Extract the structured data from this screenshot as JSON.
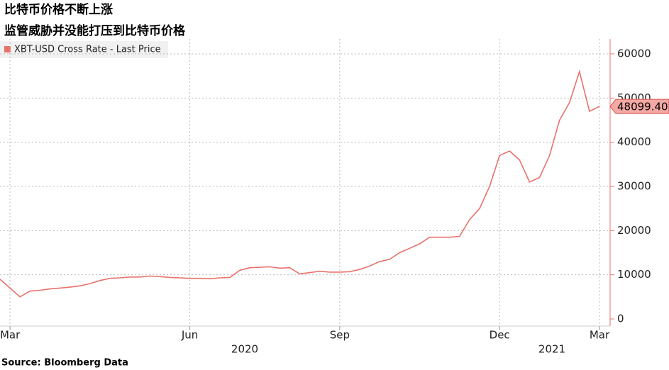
{
  "chart_data": {
    "type": "line",
    "title": "比特币价格不断上涨",
    "subtitle": "监管威胁并没能打压到比特币价格",
    "source": "Source: Bloomberg Data",
    "series": [
      {
        "name": "XBT-USD Cross Rate - Last Price",
        "color": "#e8716b",
        "values": [
          9000,
          7000,
          5000,
          6300,
          6500,
          6800,
          7000,
          7200,
          7500,
          8000,
          8700,
          9200,
          9300,
          9500,
          9500,
          9700,
          9600,
          9400,
          9300,
          9200,
          9200,
          9100,
          9300,
          9400,
          11000,
          11600,
          11700,
          11800,
          11500,
          11600,
          10200,
          10500,
          10800,
          10600,
          10600,
          10700,
          11200,
          12000,
          13000,
          13500,
          15000,
          16000,
          17000,
          18500,
          18500,
          18500,
          18700,
          22500,
          25000,
          30000,
          37000,
          38000,
          36000,
          31000,
          32000,
          37000,
          45000,
          49000,
          56000,
          47000,
          48099.4
        ]
      }
    ],
    "last_value": {
      "value": 48099.4,
      "label": "48099.40"
    },
    "xticks": [
      {
        "value": 1,
        "label": "Mar"
      },
      {
        "value": 19,
        "label": "Jun"
      },
      {
        "value": 34,
        "label": "Sep"
      },
      {
        "value": 50,
        "label": "Dec"
      },
      {
        "value": 60,
        "label": "Mar"
      }
    ],
    "years": [
      "2020",
      "2021"
    ],
    "ylim": [
      -1500,
      62000
    ],
    "yticks": [
      0,
      10000,
      20000,
      30000,
      40000,
      50000,
      60000
    ],
    "grid": true
  }
}
